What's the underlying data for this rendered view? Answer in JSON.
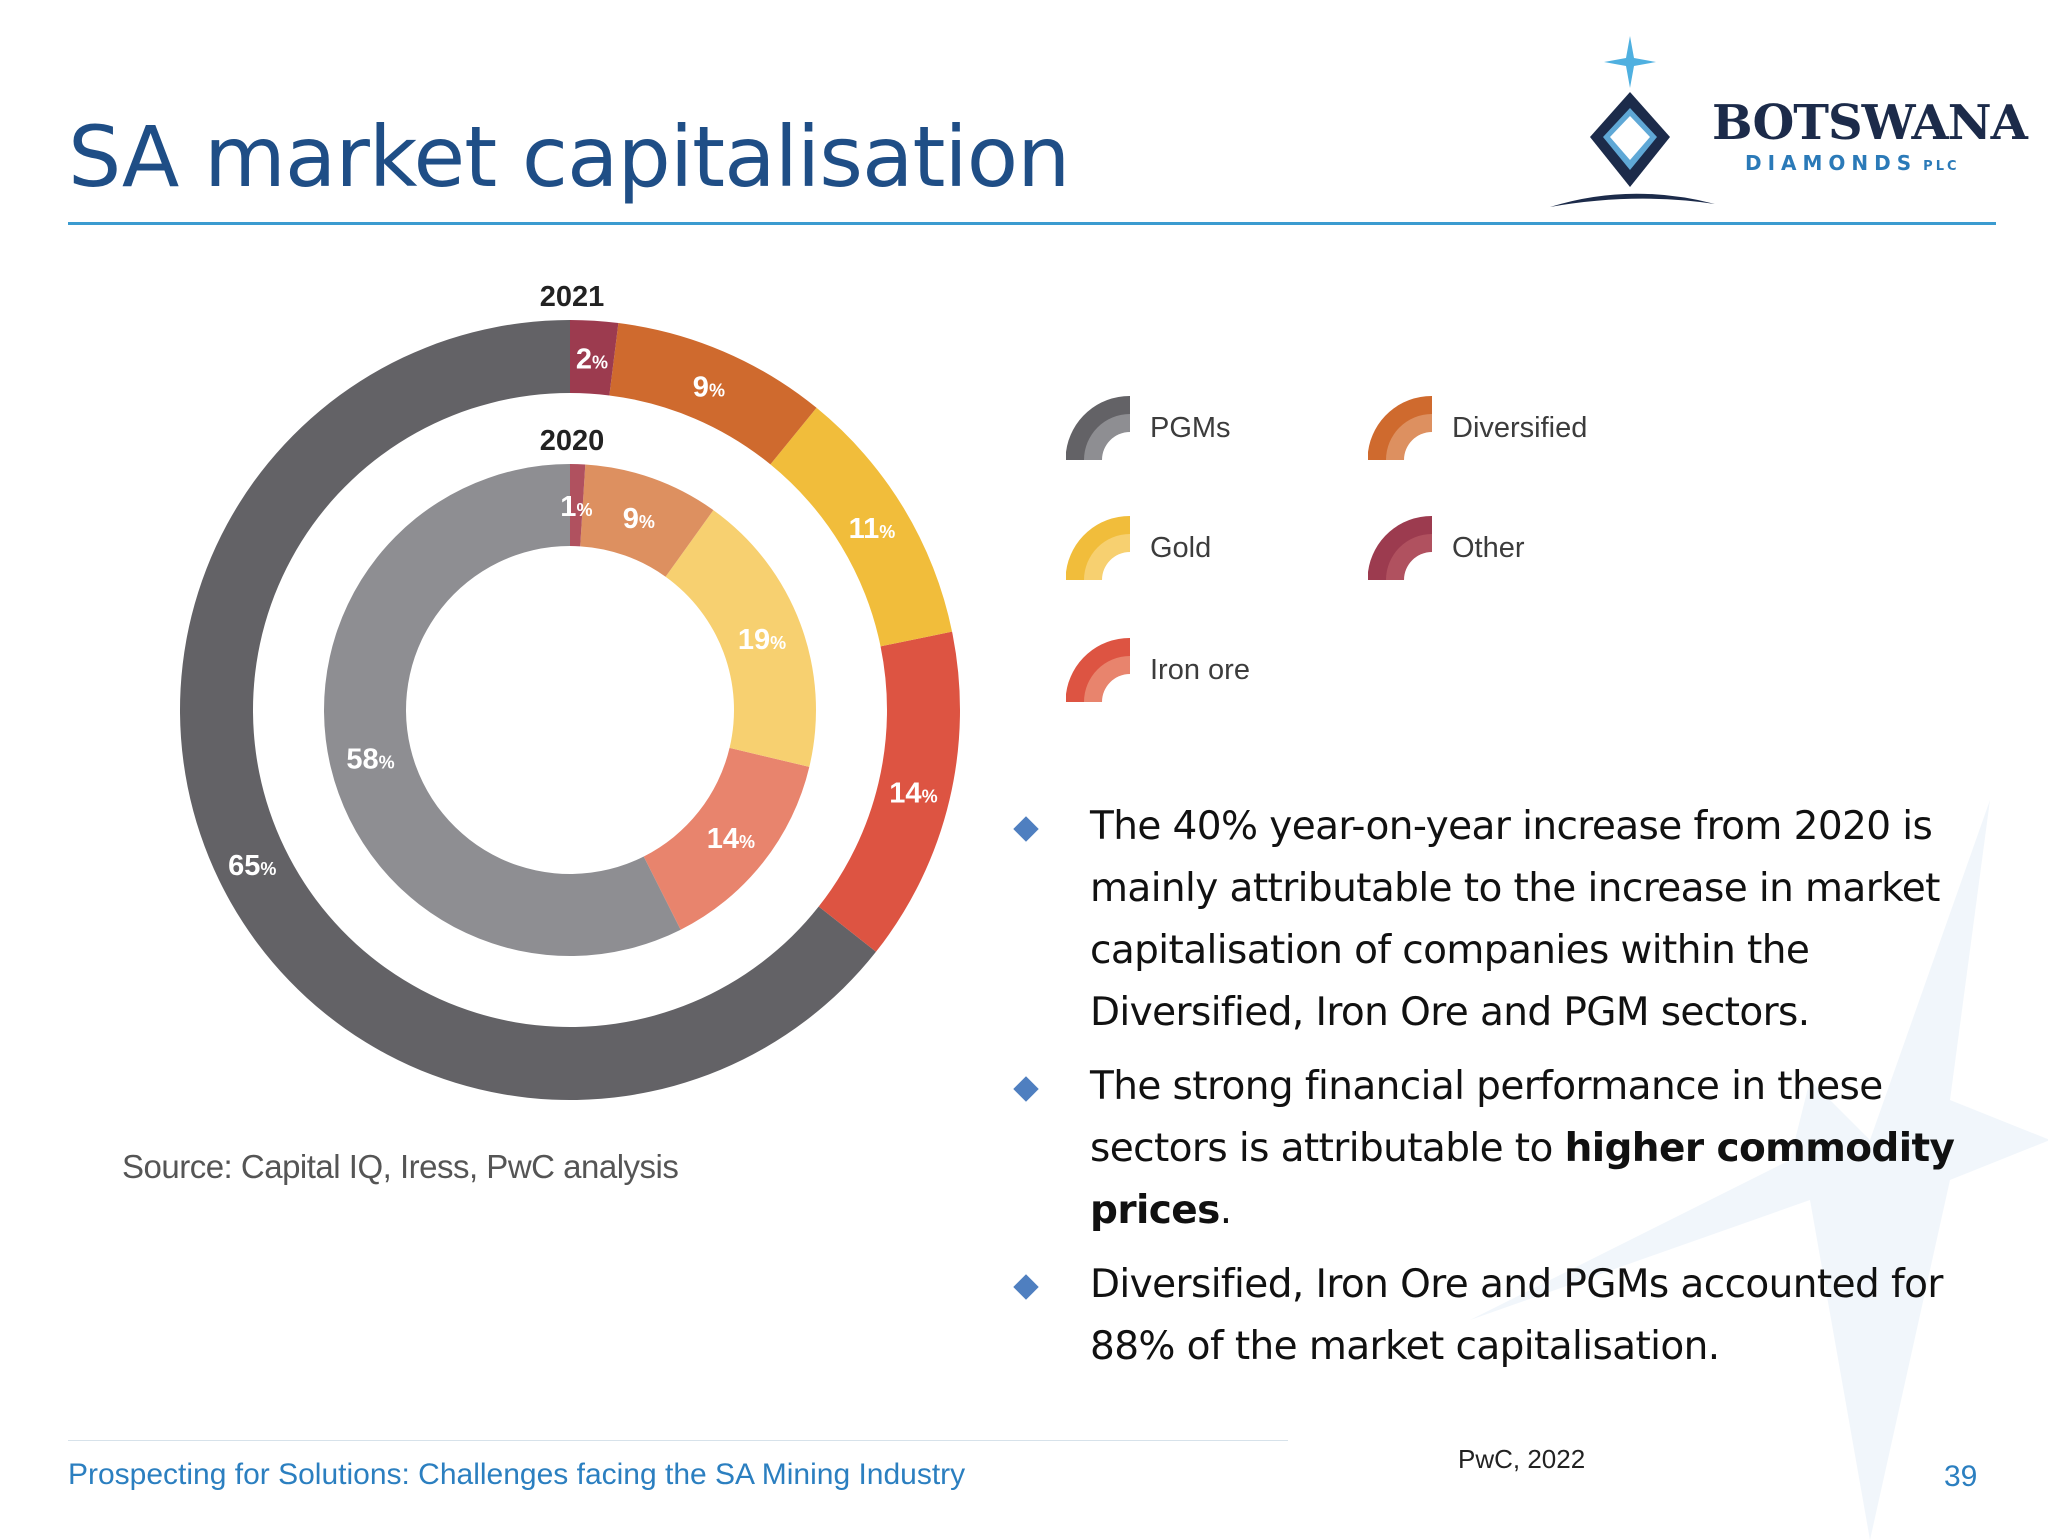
{
  "title": "SA market capitalisation",
  "logo": {
    "name": "BOTSWANA",
    "sub": "DIAMONDS",
    "suffix": "PLC"
  },
  "chart_data": {
    "type": "pie",
    "variant": "nested-donut",
    "series": [
      {
        "name": "2021",
        "ring": "outer",
        "categories": [
          "PGMs",
          "Iron ore",
          "Gold",
          "Diversified",
          "Other"
        ],
        "values": [
          65,
          14,
          11,
          9,
          2
        ]
      },
      {
        "name": "2020",
        "ring": "inner",
        "categories": [
          "PGMs",
          "Iron ore",
          "Gold",
          "Diversified",
          "Other"
        ],
        "values": [
          58,
          14,
          19,
          9,
          1
        ]
      }
    ],
    "unit": "%",
    "legend": [
      "PGMs",
      "Diversified",
      "Gold",
      "Other",
      "Iron ore"
    ],
    "legend_placement": "right",
    "colors": {
      "outer": {
        "PGMs": "#636266",
        "Iron ore": "#dd5442",
        "Gold": "#f1bd3b",
        "Diversified": "#cf6a2e",
        "Other": "#9c3b4f"
      },
      "inner": {
        "PGMs": "#8e8e92",
        "Iron ore": "#e8846d",
        "Gold": "#f7d070",
        "Diversified": "#dd9060",
        "Other": "#b0515f"
      }
    }
  },
  "source": "Source: Capital IQ, Iress, PwC analysis",
  "bullets": [
    {
      "parts": [
        {
          "text": "The 40% year-on-year increase from 2020 is mainly attributable to the increase in market capitalisation of companies within the Diversified, Iron Ore and PGM sectors.",
          "bold": false
        }
      ]
    },
    {
      "parts": [
        {
          "text": "The strong financial performance in these sectors is attributable to ",
          "bold": false
        },
        {
          "text": "higher commodity prices",
          "bold": true
        },
        {
          "text": ".",
          "bold": false
        }
      ]
    },
    {
      "parts": [
        {
          "text": "Diversified, Iron Ore and PGMs accounted for 88% of the market capitalisation.",
          "bold": false
        }
      ]
    }
  ],
  "footer": "Prospecting for Solutions: Challenges facing the SA Mining Industry",
  "credit": "PwC, 2022",
  "page_number": "39"
}
